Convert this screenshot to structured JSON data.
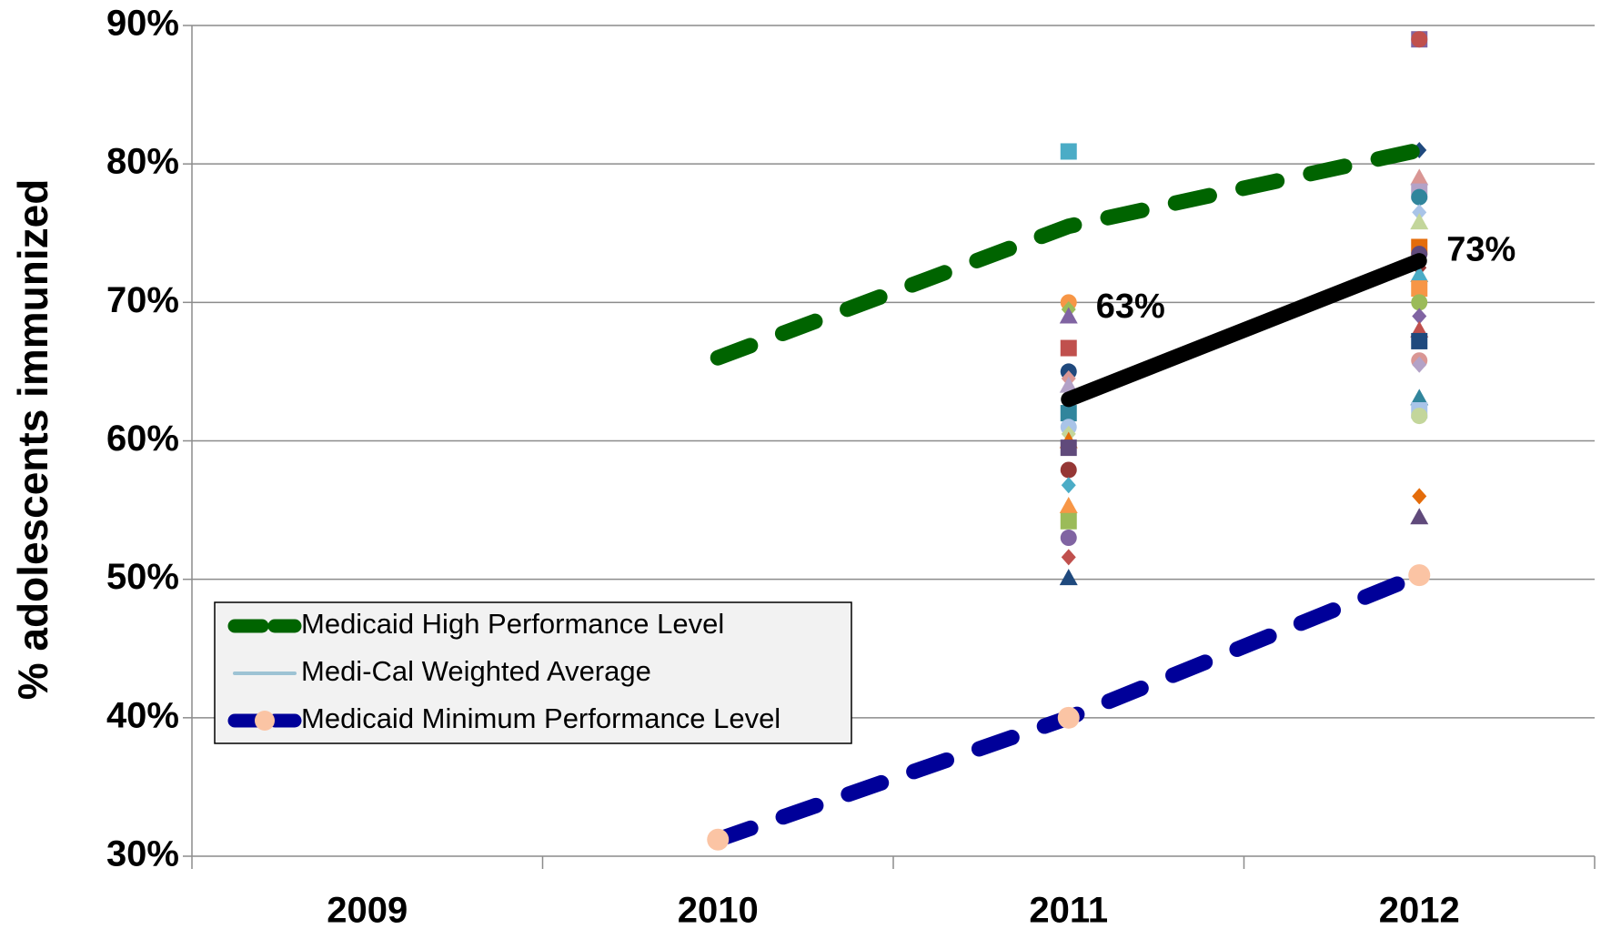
{
  "chart_data": {
    "type": "line",
    "y_label": "% adolescents immunized",
    "categories": [
      "2009",
      "2010",
      "2011",
      "2012"
    ],
    "ylim": [
      30,
      90
    ],
    "yticks": [
      {
        "value": 30,
        "label": "30%"
      },
      {
        "value": 40,
        "label": "40%"
      },
      {
        "value": 50,
        "label": "50%"
      },
      {
        "value": 60,
        "label": "60%"
      },
      {
        "value": 70,
        "label": "70%"
      },
      {
        "value": 80,
        "label": "80%"
      },
      {
        "value": 90,
        "label": "90%"
      }
    ],
    "grid": true,
    "legend": "bottom-left",
    "series": [
      {
        "name": "Medicaid High Performance Level",
        "color": "#006400",
        "dash": true,
        "values": [
          null,
          66,
          75.5,
          81
        ]
      },
      {
        "name": "Medi-Cal Weighted Average",
        "color": "#000000",
        "legend_color": "#9dc3d4",
        "values": [
          null,
          null,
          63,
          73
        ],
        "value_labels": [
          null,
          null,
          "63%",
          "73%"
        ]
      },
      {
        "name": "Medicaid Minimum Performance Level",
        "color": "#000099",
        "marker_color": "#fbc4a4",
        "dash": true,
        "values": [
          null,
          31.2,
          40,
          50.3
        ]
      }
    ],
    "plan_points": [
      {
        "category": "2011",
        "values": [
          80.9,
          70,
          69.5,
          69,
          66.7,
          65,
          64.5,
          64,
          62,
          61,
          60.5,
          60,
          59.5,
          57.9,
          56.8,
          55.3,
          54.2,
          53,
          51.6,
          50.1
        ]
      },
      {
        "category": "2012",
        "values": [
          89,
          89,
          81,
          79,
          78,
          77.6,
          76.5,
          75.8,
          74,
          73.5,
          72.5,
          72,
          71,
          70,
          69,
          68,
          67.2,
          65.8,
          65.5,
          63.1,
          62.2,
          61.8,
          56,
          54.5
        ]
      }
    ],
    "plan_colors": [
      "#4bacc6",
      "#f79646",
      "#9bbb59",
      "#8064a2",
      "#c0504d",
      "#1f497d",
      "#d99694",
      "#b3a2c7",
      "#31859c",
      "#a9c4e8",
      "#c3d69b",
      "#e46c0a",
      "#604a7b",
      "#953735"
    ]
  }
}
